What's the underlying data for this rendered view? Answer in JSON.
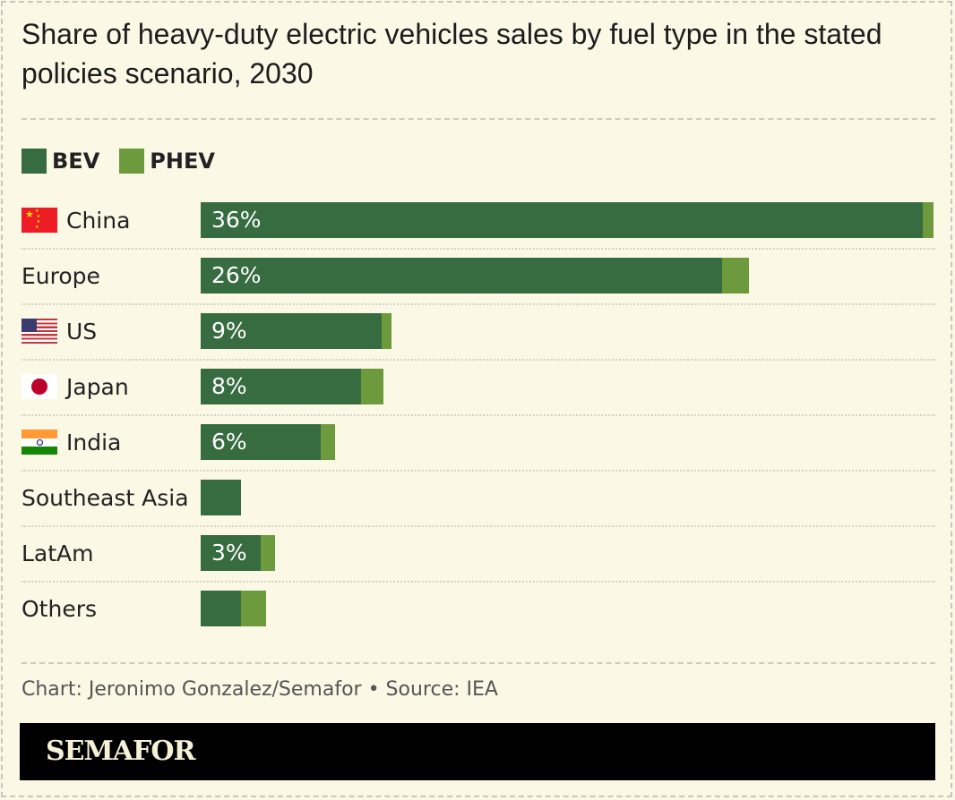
{
  "chart_data": {
    "type": "bar",
    "orientation": "horizontal",
    "stacked": true,
    "title": "Share of heavy-duty electric vehicles sales by fuel type in the stated policies scenario, 2030",
    "categories": [
      "China",
      "Europe",
      "US",
      "Japan",
      "India",
      "Southeast Asia",
      "LatAm",
      "Others"
    ],
    "flags": [
      "china",
      "",
      "us",
      "japan",
      "india",
      "",
      "",
      ""
    ],
    "data_labels": [
      "36%",
      "26%",
      "9%",
      "8%",
      "6%",
      "",
      "3%",
      ""
    ],
    "series": [
      {
        "name": "BEV",
        "color": "#376b40",
        "values": [
          36,
          26,
          9,
          8,
          6,
          2,
          3,
          2
        ]
      },
      {
        "name": "PHEV",
        "color": "#6c9a3c",
        "values": [
          0.5,
          1.3,
          0.5,
          1.1,
          0.7,
          0,
          0.7,
          1.25
        ]
      }
    ],
    "unit": "%",
    "xlim": [
      0,
      37
    ],
    "grid": false,
    "legend": "top-left"
  },
  "credit": "Chart: Jeronimo Gonzalez/Semafor • Source: IEA",
  "logo": "SEMAFOR"
}
